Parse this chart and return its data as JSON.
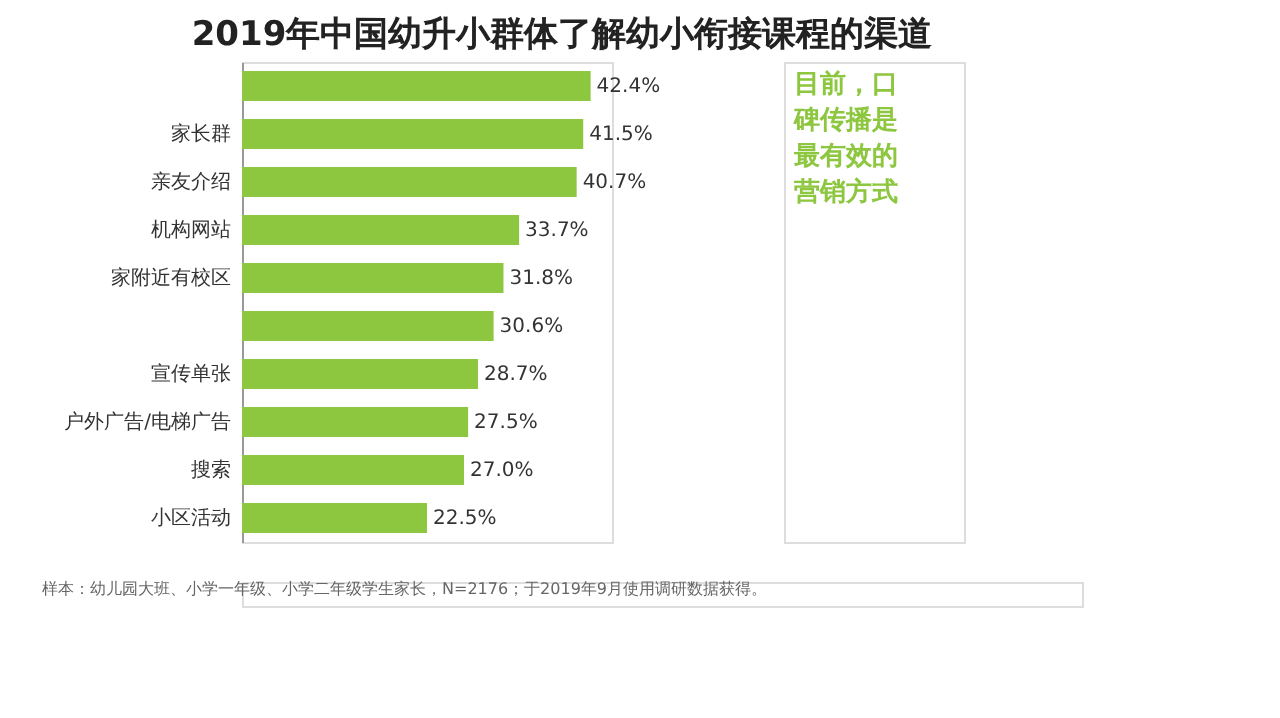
{
  "chart_data": {
    "type": "bar",
    "orientation": "horizontal",
    "title": "2019年中国幼升小群体了解幼小衔接课程的渠道",
    "categories": [
      null,
      "家长群",
      "亲友介绍",
      "机构网站",
      "家附近有校区",
      null,
      "宣传单张",
      "户外广告/电梯广告",
      "搜索",
      "小区活动"
    ],
    "values": [
      42.4,
      41.5,
      40.7,
      33.7,
      31.8,
      30.6,
      28.7,
      27.5,
      27.0,
      22.5
    ],
    "value_labels": [
      "42.4%",
      "41.5%",
      "40.7%",
      "33.7%",
      "31.8%",
      "30.6%",
      "28.7%",
      "27.5%",
      "27.0%",
      "22.5%"
    ],
    "color": "#8dc63f",
    "grid": false,
    "annotations": [
      "目前，口碑传播是最有效的营销方式",
      "样本：幼儿园大班、小学一年级、小学二年级学生家长，N=2176；于2019年9月使用调研数据获得。"
    ]
  }
}
